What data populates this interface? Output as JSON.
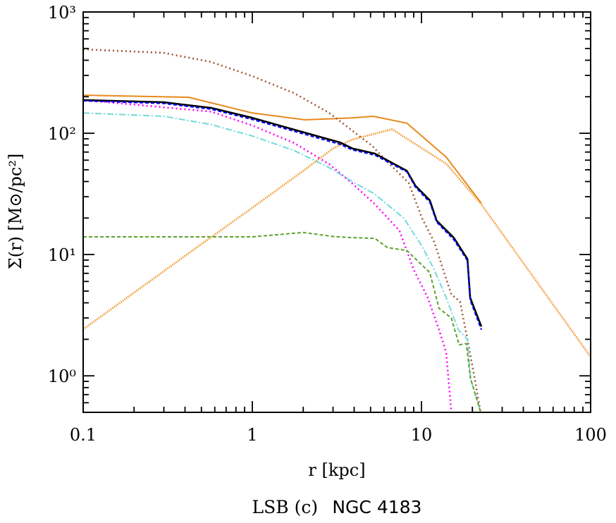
{
  "chart_data": {
    "type": "line",
    "xlabel": "r [kpc]",
    "ylabel": "Σ(r) [M⊙/pc²]",
    "caption_prefix": "LSB (c)",
    "caption_name": "NGC 4183",
    "xscale": "log",
    "yscale": "log",
    "xlim": [
      0.1,
      100
    ],
    "ylim": [
      0.5,
      1000
    ],
    "grid": false,
    "x_ticks": [
      0.1,
      1,
      10,
      100
    ],
    "x_tick_labels": [
      "0.1",
      "1",
      "10",
      "100"
    ],
    "y_ticks": [
      1,
      10,
      100,
      1000
    ],
    "y_tick_labels": [
      "10⁰",
      "10¹",
      "10²",
      "10³"
    ],
    "series": [
      {
        "color": "#e8891c",
        "style": "solid",
        "x": [
          0.1,
          0.42,
          1.0,
          2.05,
          3.9,
          5.2,
          8.2,
          14,
          22.6
        ],
        "y": [
          206,
          198,
          147,
          129,
          134,
          138,
          121,
          63.6,
          26.5
        ]
      },
      {
        "color": "#f0901e",
        "style": "dotted",
        "x": [
          0.1,
          0.2,
          0.5,
          0.93,
          2,
          3,
          3.9,
          6.7,
          14,
          22.6,
          43,
          99
        ],
        "y": [
          2.42,
          4.85,
          12.2,
          22.6,
          49,
          75,
          88.7,
          108,
          56,
          25.9,
          7.4,
          1.46
        ]
      },
      {
        "color": "#a0563a",
        "style": "dotted",
        "x": [
          0.1,
          0.3,
          0.57,
          1.0,
          1.77,
          2.85,
          3.9,
          5.1,
          6.3,
          8.4,
          10.1,
          11.9,
          13.2,
          15,
          16.9,
          18.7,
          20.5,
          22.3
        ],
        "y": [
          492,
          460,
          387,
          296,
          214,
          147,
          105,
          79,
          58,
          39,
          19.8,
          12.7,
          8.1,
          4.7,
          4.1,
          2.0,
          1.0,
          0.51
        ]
      },
      {
        "color": "#ff00ff",
        "style": "dotted",
        "x": [
          0.1,
          0.57,
          1.0,
          1.77,
          2.85,
          3.9,
          5.3,
          7.4,
          9.0,
          10.9,
          12.7,
          14,
          15
        ],
        "y": [
          188,
          151,
          116,
          83,
          55.6,
          38.5,
          26,
          15.8,
          7.5,
          4.4,
          2.4,
          1.55,
          0.51
        ]
      },
      {
        "color": "#74d9d9",
        "style": "dashdot",
        "x": [
          0.1,
          0.3,
          0.57,
          1.0,
          1.77,
          2.85,
          3.9,
          5.3,
          7.9,
          10.1,
          11.9,
          14,
          16.5,
          18.7,
          19.5,
          22.3
        ],
        "y": [
          147,
          138,
          118,
          95,
          72,
          52,
          40,
          31.5,
          19.8,
          11.6,
          7.5,
          4.4,
          2.4,
          2.0,
          0.95,
          0.51
        ]
      },
      {
        "color": "#5ea12e",
        "style": "dashed",
        "x": [
          0.1,
          1.0,
          2.0,
          3.0,
          3.9,
          5.3,
          6.3,
          8.2,
          11.2,
          12.7,
          15,
          16.7,
          18.4,
          19.5,
          22.3
        ],
        "y": [
          14,
          14,
          15.2,
          14.1,
          13.8,
          13.6,
          11.4,
          10.8,
          7.1,
          3.6,
          3.0,
          1.8,
          1.85,
          0.95,
          0.51
        ]
      },
      {
        "color": "#000000",
        "style": "solid",
        "x": [
          0.1,
          0.3,
          0.57,
          1.0,
          2.05,
          3.3,
          3.9,
          5.3,
          8.2,
          9.2,
          11.2,
          12.3,
          15.5,
          18.7,
          19.4,
          22.6
        ],
        "y": [
          188,
          180,
          162,
          134,
          101,
          84,
          75,
          68,
          49,
          37,
          28,
          19,
          13.8,
          9.2,
          4.4,
          2.55
        ]
      },
      {
        "color": "#0000ff",
        "style": "dashed",
        "x": [
          0.1,
          0.3,
          0.57,
          1.0,
          2.05,
          3.3,
          3.9,
          5.3,
          8.2,
          9.2,
          11.2,
          12.3,
          15.5,
          18.7,
          19.4,
          22.6
        ],
        "y": [
          185,
          176,
          158,
          130,
          98,
          81,
          73,
          66,
          48,
          36,
          27,
          18.5,
          13.3,
          8.9,
          4.2,
          2.4
        ]
      }
    ]
  }
}
